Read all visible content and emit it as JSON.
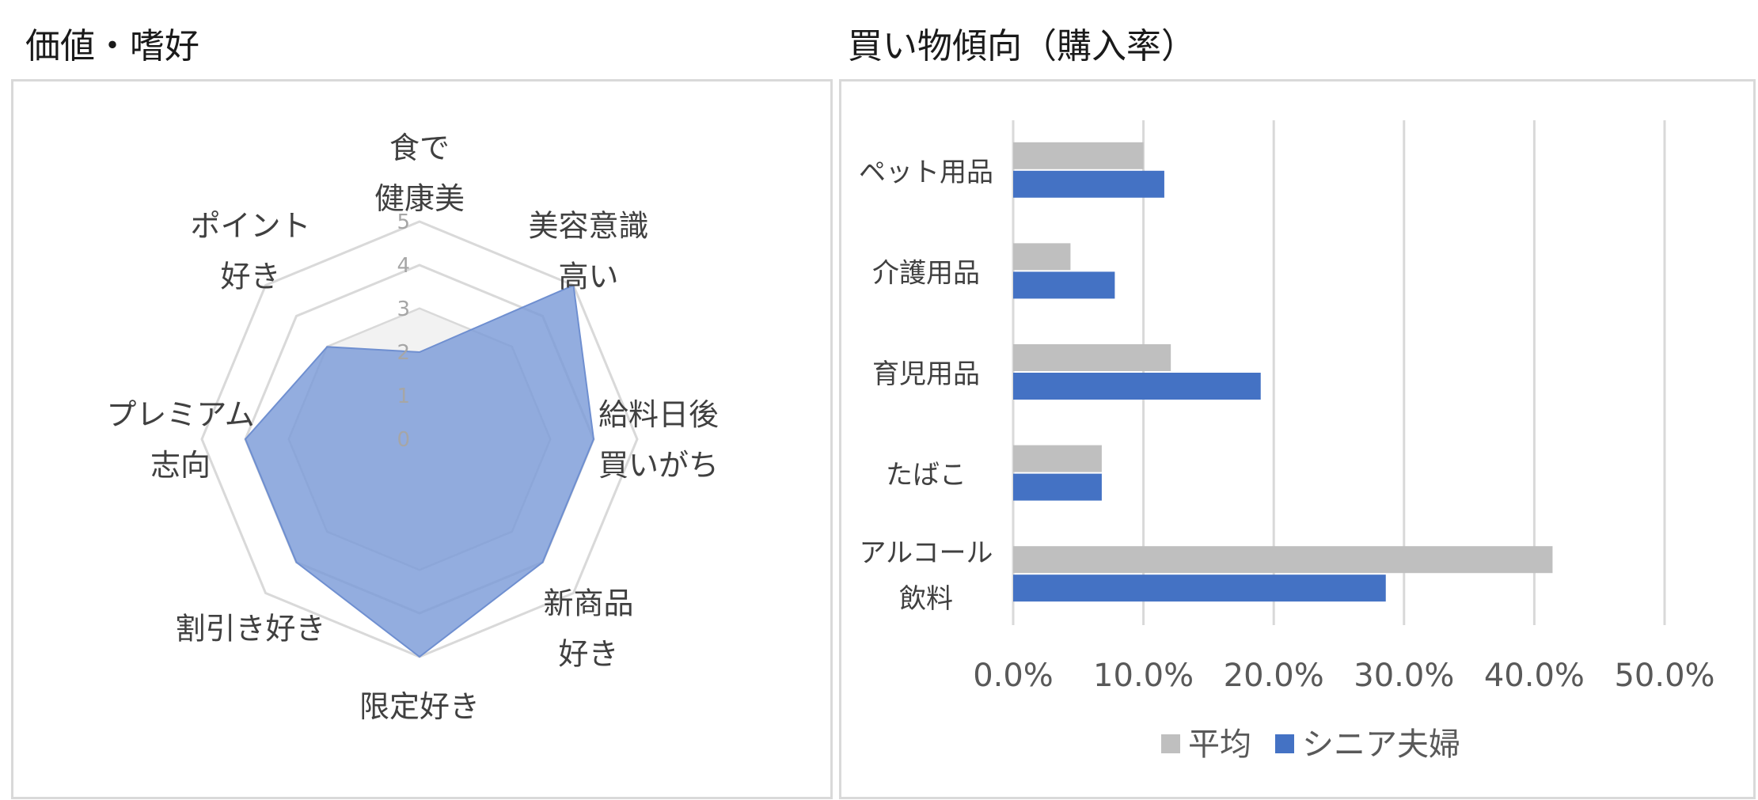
{
  "chart_data": [
    {
      "type": "radar",
      "title": "価値・嗜好",
      "axes": [
        [
          "食で",
          "健康美"
        ],
        [
          "美容意識",
          "高い"
        ],
        [
          "給料日後",
          "買いがち"
        ],
        [
          "新商品",
          "好き"
        ],
        [
          "限定好き"
        ],
        [
          "割引き好き"
        ],
        [
          "プレミアム",
          "志向"
        ],
        [
          "ポイント",
          "好き"
        ]
      ],
      "rlim": [
        0,
        5
      ],
      "r_ticks": [
        "0",
        "1",
        "2",
        "3",
        "4",
        "5"
      ],
      "grid": true,
      "series": [
        {
          "name": "平均",
          "values": [
            3,
            3,
            3,
            3,
            3,
            3,
            3,
            3
          ],
          "color": "#D9D9D9"
        },
        {
          "name": "シニア夫婦",
          "values": [
            2.0,
            5.0,
            4.0,
            4.0,
            5.0,
            4.0,
            4.0,
            3.0
          ],
          "color": "#7B9BD8"
        }
      ]
    },
    {
      "type": "bar",
      "orientation": "horizontal",
      "title": "買い物傾向（購入率）",
      "categories": [
        [
          "ペット用品"
        ],
        [
          "介護用品"
        ],
        [
          "育児用品"
        ],
        [
          "たばこ"
        ],
        [
          "アルコール",
          "飲料"
        ]
      ],
      "series": [
        {
          "name": "平均",
          "values": [
            10.0,
            4.4,
            12.1,
            6.8,
            41.4
          ],
          "color": "#BFBFBF"
        },
        {
          "name": "シニア夫婦",
          "values": [
            11.6,
            7.8,
            19.0,
            6.8,
            28.6
          ],
          "color": "#4472C4"
        }
      ],
      "xlim": [
        0,
        50
      ],
      "x_ticks": [
        "0.0%",
        "10.0%",
        "20.0%",
        "30.0%",
        "40.0%",
        "50.0%"
      ],
      "grid": true,
      "legend": "bottom"
    }
  ]
}
